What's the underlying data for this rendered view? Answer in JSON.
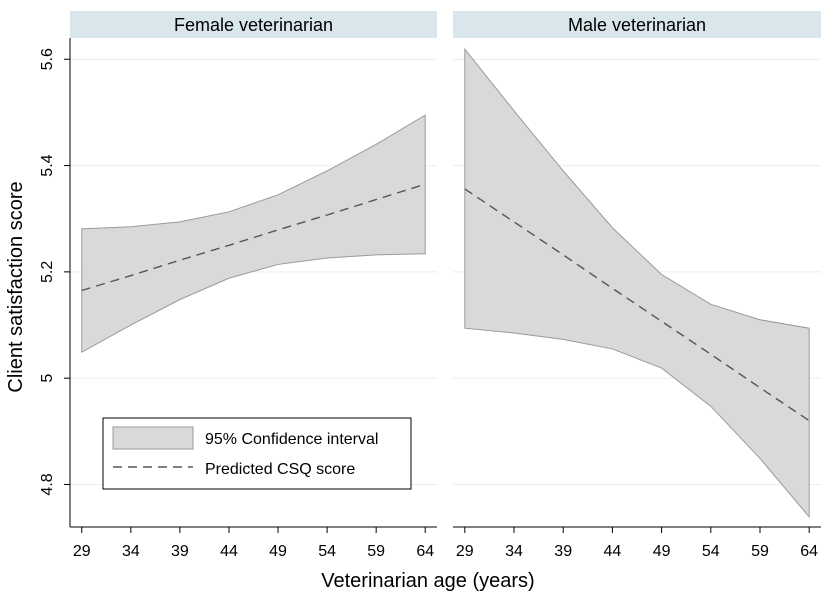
{
  "chart_data": {
    "type": "area",
    "ylabel": "Client satisfaction score",
    "xlabel": "Veterinarian age (years)",
    "x": [
      29,
      34,
      39,
      44,
      49,
      54,
      59,
      64
    ],
    "x_ticks": [
      "29",
      "34",
      "39",
      "44",
      "49",
      "54",
      "59",
      "64"
    ],
    "y_ticks": [
      {
        "value": 4.8,
        "label": "4.8"
      },
      {
        "value": 5.0,
        "label": "5"
      },
      {
        "value": 5.2,
        "label": "5.2"
      },
      {
        "value": 5.4,
        "label": "5.4"
      },
      {
        "value": 5.6,
        "label": "5.6"
      }
    ],
    "xlim": [
      27.8,
      65.2
    ],
    "ylim": [
      4.72,
      5.64
    ],
    "grid": true,
    "legend": {
      "position": "bottom-left",
      "entries": [
        {
          "label": "95% Confidence interval",
          "kind": "band"
        },
        {
          "label": "Predicted CSQ score",
          "kind": "dashed-line"
        }
      ]
    },
    "panels": [
      {
        "title": "Female veterinarian",
        "predicted": [
          5.165,
          5.193,
          5.222,
          5.25,
          5.279,
          5.307,
          5.336,
          5.365
        ],
        "ci_upper": [
          5.281,
          5.285,
          5.294,
          5.313,
          5.345,
          5.39,
          5.44,
          5.495
        ],
        "ci_lower": [
          5.049,
          5.1,
          5.148,
          5.188,
          5.214,
          5.226,
          5.232,
          5.234
        ]
      },
      {
        "title": "Male veterinarian",
        "predicted": [
          5.356,
          5.294,
          5.232,
          5.169,
          5.107,
          5.045,
          4.982,
          4.92
        ],
        "ci_upper": [
          5.619,
          5.503,
          5.39,
          5.283,
          5.195,
          5.139,
          5.11,
          5.094
        ],
        "ci_lower": [
          5.094,
          5.085,
          5.073,
          5.055,
          5.019,
          4.947,
          4.849,
          4.739
        ]
      }
    ],
    "colors": {
      "background": "#ffffff",
      "panel_bg": "#ffffff",
      "strip_bg": "#d9e6ec",
      "band_fill": "#d9d9d9",
      "band_edge": "#9a9a9a",
      "line": "#555555",
      "grid": "#e8eef1",
      "axis": "#000000",
      "text": "#000000"
    }
  }
}
